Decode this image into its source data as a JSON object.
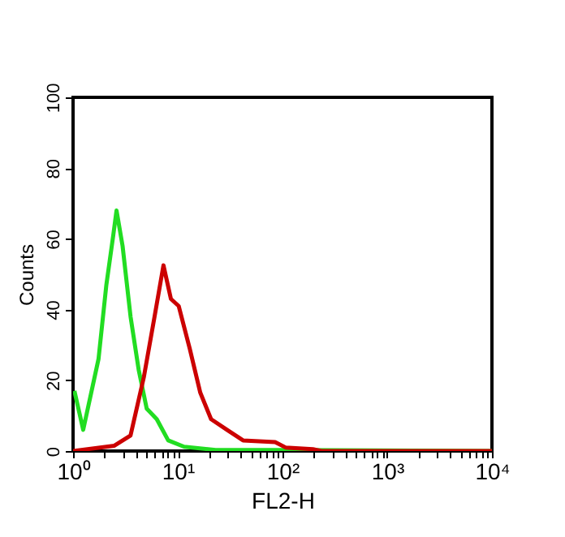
{
  "chart_data": {
    "type": "line",
    "xlabel": "FL2-H",
    "ylabel": "Counts",
    "log": "x",
    "xlim": [
      1,
      10000
    ],
    "xticks": [
      {
        "value": 1,
        "label": "10⁰"
      },
      {
        "value": 2,
        "label": null
      },
      {
        "value": 3,
        "label": null
      },
      {
        "value": 4,
        "label": null
      },
      {
        "value": 5,
        "label": null
      },
      {
        "value": 6,
        "label": null
      },
      {
        "value": 7,
        "label": null
      },
      {
        "value": 8,
        "label": null
      },
      {
        "value": 9,
        "label": null
      },
      {
        "value": 10,
        "label": "10¹"
      },
      {
        "value": 20,
        "label": null
      },
      {
        "value": 30,
        "label": null
      },
      {
        "value": 40,
        "label": null
      },
      {
        "value": 50,
        "label": null
      },
      {
        "value": 60,
        "label": null
      },
      {
        "value": 70,
        "label": null
      },
      {
        "value": 80,
        "label": null
      },
      {
        "value": 90,
        "label": null
      },
      {
        "value": 100,
        "label": "10²"
      },
      {
        "value": 200,
        "label": null
      },
      {
        "value": 300,
        "label": null
      },
      {
        "value": 400,
        "label": null
      },
      {
        "value": 500,
        "label": null
      },
      {
        "value": 600,
        "label": null
      },
      {
        "value": 700,
        "label": null
      },
      {
        "value": 800,
        "label": null
      },
      {
        "value": 900,
        "label": null
      },
      {
        "value": 1000,
        "label": "10³"
      },
      {
        "value": 2000,
        "label": null
      },
      {
        "value": 3000,
        "label": null
      },
      {
        "value": 4000,
        "label": null
      },
      {
        "value": 5000,
        "label": null
      },
      {
        "value": 6000,
        "label": null
      },
      {
        "value": 7000,
        "label": null
      },
      {
        "value": 8000,
        "label": null
      },
      {
        "value": 9000,
        "label": null
      },
      {
        "value": 10000,
        "label": "10⁴"
      }
    ],
    "ylim": [
      0,
      100
    ],
    "yticks": [
      0,
      20,
      40,
      60,
      80,
      100
    ],
    "grid": false,
    "legend": false,
    "series": [
      {
        "color": "#22dd22",
        "x": [
          1.03,
          1.25,
          1.75,
          2.08,
          2.42,
          2.6,
          2.97,
          3.54,
          4.23,
          5.05,
          6.3,
          8.1,
          11.5,
          23,
          115,
          10000
        ],
        "values": [
          17,
          6,
          26,
          47,
          61,
          68,
          58,
          38,
          23,
          12,
          9,
          3,
          1.2,
          0.3,
          0.3,
          0
        ]
      },
      {
        "color": "#cc0000",
        "x": [
          1,
          2.48,
          3.54,
          4.75,
          6.0,
          7.3,
          8.6,
          10.2,
          13.0,
          16.4,
          20.8,
          29.5,
          42,
          85,
          107,
          195,
          235,
          10000
        ],
        "values": [
          0,
          1.5,
          4.4,
          21,
          38,
          52.5,
          43,
          41,
          29,
          16.5,
          9,
          6,
          3,
          2.5,
          1,
          0.5,
          0,
          0
        ]
      }
    ]
  }
}
